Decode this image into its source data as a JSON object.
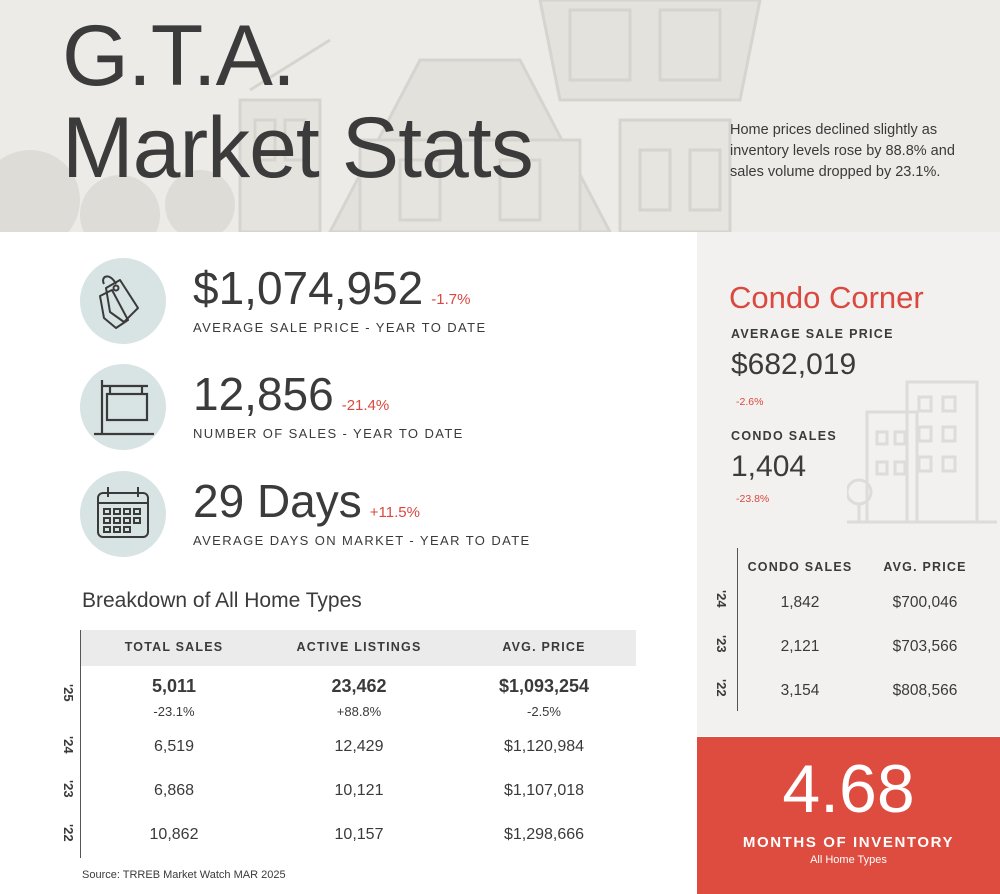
{
  "header": {
    "title_line1": "G.T.A.",
    "title_line2": "Market Stats",
    "intro": "Home prices declined slightly as inventory levels rose by 88.8% and sales volume dropped by 23.1%."
  },
  "stats": [
    {
      "value": "$1,074,952",
      "change": "-1.7%",
      "label": "AVERAGE SALE PRICE - YEAR TO DATE",
      "icon": "price-tag-icon"
    },
    {
      "value": "12,856",
      "change": "-21.4%",
      "label": "NUMBER OF SALES - YEAR TO DATE",
      "icon": "sale-sign-icon"
    },
    {
      "value": "29 Days",
      "change": "+11.5%",
      "label": "AVERAGE DAYS ON MARKET - YEAR TO DATE",
      "icon": "calendar-icon"
    }
  ],
  "breakdown": {
    "title": "Breakdown of All Home Types",
    "headers": [
      "TOTAL SALES",
      "ACTIVE LISTINGS",
      "AVG. PRICE"
    ],
    "rows": [
      {
        "year": "'25",
        "total_sales": "5,011",
        "total_sales_change": "-23.1%",
        "active_listings": "23,462",
        "active_listings_change": "+88.8%",
        "avg_price": "$1,093,254",
        "avg_price_change": "-2.5%"
      },
      {
        "year": "'24",
        "total_sales": "6,519",
        "active_listings": "12,429",
        "avg_price": "$1,120,984"
      },
      {
        "year": "'23",
        "total_sales": "6,868",
        "active_listings": "10,121",
        "avg_price": "$1,107,018"
      },
      {
        "year": "'22",
        "total_sales": "10,862",
        "active_listings": "10,157",
        "avg_price": "$1,298,666"
      }
    ],
    "source": "Source: TRREB Market Watch MAR 2025"
  },
  "condo": {
    "heading": "Condo Corner",
    "avg_price_label": "AVERAGE SALE PRICE",
    "avg_price_value": "$682,019",
    "avg_price_change": "-2.6%",
    "sales_label": "CONDO SALES",
    "sales_value": "1,404",
    "sales_change": "-23.8%",
    "table_headers": [
      "CONDO SALES",
      "AVG. PRICE"
    ],
    "rows": [
      {
        "year": "'24",
        "sales": "1,842",
        "price": "$700,046"
      },
      {
        "year": "'23",
        "sales": "2,121",
        "price": "$703,566"
      },
      {
        "year": "'22",
        "sales": "3,154",
        "price": "$808,566"
      }
    ]
  },
  "inventory": {
    "value": "4.68",
    "label": "MONTHS OF INVENTORY",
    "sub": "All Home Types"
  },
  "colors": {
    "accent": "#dd4c3f",
    "icon_circle": "#d8e3e3",
    "header_bg": "#ecebe8",
    "condo_bg": "#f2f1ef"
  }
}
